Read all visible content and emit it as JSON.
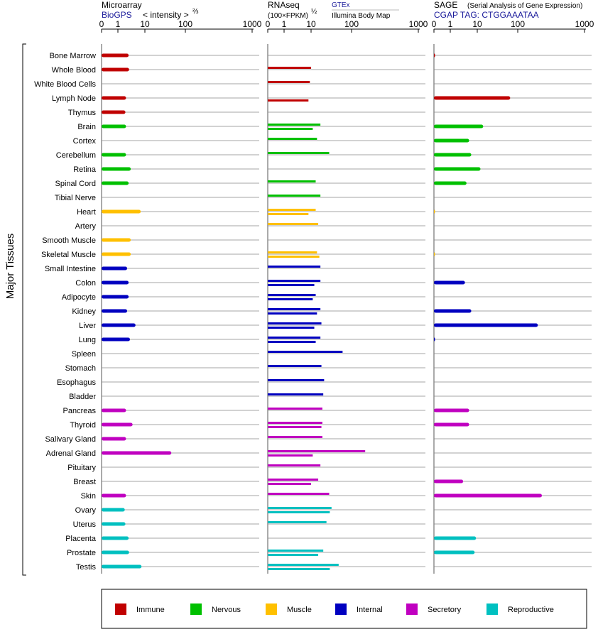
{
  "panels": {
    "microarray": {
      "title": "Microarray",
      "source": "BioGPS",
      "scale_label": "< intensity >",
      "scale_exp": "⅔"
    },
    "rnaseq": {
      "title": "RNAseq",
      "unit": "(100×FPKM)",
      "unit_exp": "½",
      "legend_gtex": "GTEx",
      "legend_ibm": "Illumina Body Map"
    },
    "sage": {
      "title": "SAGE",
      "subtitle": "(Serial Analysis of Gene Expression)",
      "tag": "CGAP TAG: CTGGAAATAA"
    }
  },
  "y_axis_label": "Major Tissues",
  "legend": [
    {
      "label": "Immune",
      "color": "#c00000"
    },
    {
      "label": "Nervous",
      "color": "#00c000"
    },
    {
      "label": "Muscle",
      "color": "#ffc000"
    },
    {
      "label": "Internal",
      "color": "#0000c0"
    },
    {
      "label": "Secretory",
      "color": "#c000c0"
    },
    {
      "label": "Reproductive",
      "color": "#00c0c0"
    }
  ],
  "chart_data": {
    "type": "bar",
    "x_ticks": [
      "0",
      "1",
      "10",
      "100",
      "1000"
    ],
    "x_ticks_values": [
      0,
      1,
      10,
      100,
      1000
    ],
    "xlim": [
      0,
      1000
    ],
    "x_scale": "compressed-log",
    "tissues": [
      {
        "name": "Bone Marrow",
        "group": "Immune",
        "microarray": 2.5,
        "gtex": null,
        "ibm": null,
        "sage": 0.01
      },
      {
        "name": "Whole Blood",
        "group": "Immune",
        "microarray": 2.6,
        "gtex": 10,
        "ibm": null,
        "sage": null
      },
      {
        "name": "White Blood Cells",
        "group": "Immune",
        "microarray": null,
        "gtex": 9,
        "ibm": null,
        "sage": null
      },
      {
        "name": "Lymph Node",
        "group": "Immune",
        "microarray": 2.0,
        "gtex": null,
        "ibm": 8,
        "sage": 65
      },
      {
        "name": "Thymus",
        "group": "Immune",
        "microarray": 1.9,
        "gtex": null,
        "ibm": null,
        "sage": null
      },
      {
        "name": "Brain",
        "group": "Nervous",
        "microarray": 2.0,
        "gtex": 17,
        "ibm": 11,
        "sage": 14
      },
      {
        "name": "Cortex",
        "group": "Nervous",
        "microarray": null,
        "gtex": 14,
        "ibm": null,
        "sage": 5
      },
      {
        "name": "Cerebellum",
        "group": "Nervous",
        "microarray": 2.0,
        "gtex": 28,
        "ibm": null,
        "sage": 6
      },
      {
        "name": "Retina",
        "group": "Nervous",
        "microarray": 3.0,
        "gtex": null,
        "ibm": null,
        "sage": 12
      },
      {
        "name": "Spinal Cord",
        "group": "Nervous",
        "microarray": 2.5,
        "gtex": 13,
        "ibm": null,
        "sage": 4
      },
      {
        "name": "Tibial Nerve",
        "group": "Nervous",
        "microarray": null,
        "gtex": 17,
        "ibm": null,
        "sage": null
      },
      {
        "name": "Heart",
        "group": "Muscle",
        "microarray": 7.0,
        "gtex": 13,
        "ibm": 8,
        "sage": 0.01
      },
      {
        "name": "Artery",
        "group": "Muscle",
        "microarray": null,
        "gtex": 15,
        "ibm": null,
        "sage": null
      },
      {
        "name": "Smooth Muscle",
        "group": "Muscle",
        "microarray": 3.0,
        "gtex": null,
        "ibm": null,
        "sage": null
      },
      {
        "name": "Skeletal Muscle",
        "group": "Muscle",
        "microarray": 3.0,
        "gtex": 14,
        "ibm": 16,
        "sage": 0.01
      },
      {
        "name": "Small Intestine",
        "group": "Internal",
        "microarray": 2.2,
        "gtex": 17,
        "ibm": null,
        "sage": null
      },
      {
        "name": "Colon",
        "group": "Internal",
        "microarray": 2.5,
        "gtex": 17,
        "ibm": 12,
        "sage": 3.5
      },
      {
        "name": "Adipocyte",
        "group": "Internal",
        "microarray": 2.5,
        "gtex": 13,
        "ibm": 11,
        "sage": null
      },
      {
        "name": "Kidney",
        "group": "Internal",
        "microarray": 2.2,
        "gtex": 17,
        "ibm": 14,
        "sage": 6
      },
      {
        "name": "Liver",
        "group": "Internal",
        "microarray": 4.5,
        "gtex": 18,
        "ibm": 12,
        "sage": 200
      },
      {
        "name": "Lung",
        "group": "Internal",
        "microarray": 2.8,
        "gtex": 17,
        "ibm": 13,
        "sage": 0.01
      },
      {
        "name": "Spleen",
        "group": "Internal",
        "microarray": null,
        "gtex": 60,
        "ibm": null,
        "sage": null
      },
      {
        "name": "Stomach",
        "group": "Internal",
        "microarray": null,
        "gtex": 18,
        "ibm": null,
        "sage": null
      },
      {
        "name": "Esophagus",
        "group": "Internal",
        "microarray": null,
        "gtex": 21,
        "ibm": null,
        "sage": null
      },
      {
        "name": "Bladder",
        "group": "Internal",
        "microarray": null,
        "gtex": 20,
        "ibm": null,
        "sage": null
      },
      {
        "name": "Pancreas",
        "group": "Secretory",
        "microarray": 2.0,
        "gtex": 19,
        "ibm": null,
        "sage": 5
      },
      {
        "name": "Thyroid",
        "group": "Secretory",
        "microarray": 3.5,
        "gtex": 19,
        "ibm": 18,
        "sage": 5
      },
      {
        "name": "Salivary Gland",
        "group": "Secretory",
        "microarray": 2.0,
        "gtex": 19,
        "ibm": null,
        "sage": null
      },
      {
        "name": "Adrenal Gland",
        "group": "Secretory",
        "microarray": 45,
        "gtex": 160,
        "ibm": 11,
        "sage": null
      },
      {
        "name": "Pituitary",
        "group": "Secretory",
        "microarray": null,
        "gtex": 17,
        "ibm": null,
        "sage": null
      },
      {
        "name": "Breast",
        "group": "Secretory",
        "microarray": null,
        "gtex": 15,
        "ibm": 10,
        "sage": 3
      },
      {
        "name": "Skin",
        "group": "Secretory",
        "microarray": 2.0,
        "gtex": 28,
        "ibm": null,
        "sage": 230
      },
      {
        "name": "Ovary",
        "group": "Reproductive",
        "microarray": 1.8,
        "gtex": 32,
        "ibm": 29,
        "sage": null
      },
      {
        "name": "Uterus",
        "group": "Reproductive",
        "microarray": 1.9,
        "gtex": 24,
        "ibm": null,
        "sage": null
      },
      {
        "name": "Placenta",
        "group": "Reproductive",
        "microarray": 2.5,
        "gtex": null,
        "ibm": null,
        "sage": 9
      },
      {
        "name": "Prostate",
        "group": "Reproductive",
        "microarray": 2.6,
        "gtex": 20,
        "ibm": 15,
        "sage": 8
      },
      {
        "name": "Testis",
        "group": "Reproductive",
        "microarray": 7.5,
        "gtex": 48,
        "ibm": 29,
        "sage": null
      }
    ]
  }
}
